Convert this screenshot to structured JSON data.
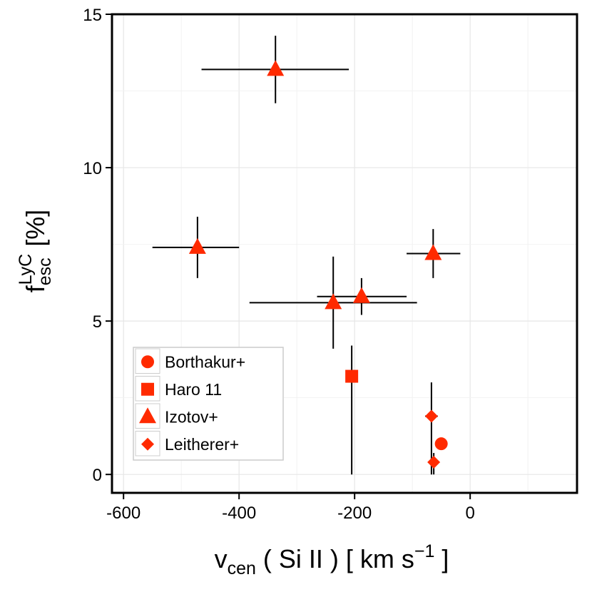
{
  "chart_data": {
    "type": "scatter",
    "title": "",
    "xlabel": {
      "main": "v",
      "sub": "cen",
      "rest_a": " ( Si II ) [ km s",
      "sup": "−1",
      "rest_b": " ]"
    },
    "ylabel": {
      "main": "f",
      "sub": "esc",
      "sup": "LyC",
      "rest": " [%]"
    },
    "xlim": [
      -620,
      185
    ],
    "ylim": [
      -0.6,
      15
    ],
    "xticks": [
      -600,
      -400,
      -200,
      0
    ],
    "xtick_labels": [
      "-600",
      "-400",
      "-200",
      "0"
    ],
    "yticks": [
      0,
      5,
      10,
      15
    ],
    "ytick_labels": [
      "0",
      "5",
      "10",
      "15"
    ],
    "grid": true,
    "marker_color": "#ff2a00",
    "legend_position": "bottom-left",
    "series": [
      {
        "name": "Borthakur+",
        "marker": "circle",
        "points": [
          {
            "x": -50,
            "y": 1.0
          }
        ]
      },
      {
        "name": "Haro 11",
        "marker": "square",
        "points": [
          {
            "x": -205,
            "y": 3.2,
            "yerr_low": 0,
            "yerr_high": 4.2
          }
        ]
      },
      {
        "name": "Izotov+",
        "marker": "triangle",
        "points": [
          {
            "x": -337,
            "y": 13.2,
            "xerr_low": -465,
            "xerr_high": -210,
            "yerr_low": 12.1,
            "yerr_high": 14.3
          },
          {
            "x": -472,
            "y": 7.4,
            "xerr_low": -550,
            "xerr_high": -400,
            "yerr_low": 6.4,
            "yerr_high": 8.4
          },
          {
            "x": -237,
            "y": 5.6,
            "xerr_low": -382,
            "xerr_high": -92,
            "yerr_low": 4.1,
            "yerr_high": 7.1
          },
          {
            "x": -188,
            "y": 5.8,
            "xerr_low": -265,
            "xerr_high": -110,
            "yerr_low": 5.2,
            "yerr_high": 6.4
          },
          {
            "x": -64,
            "y": 7.2,
            "xerr_low": -110,
            "xerr_high": -17,
            "yerr_low": 6.4,
            "yerr_high": 8.0
          }
        ]
      },
      {
        "name": "Leitherer+",
        "marker": "diamond",
        "points": [
          {
            "x": -67,
            "y": 1.9,
            "xerr_low": -78,
            "xerr_high": -56,
            "yerr_low": 0,
            "yerr_high": 3.0
          },
          {
            "x": -63,
            "y": 0.4,
            "xerr_low": -68,
            "xerr_high": -58,
            "yerr_low": 0,
            "yerr_high": 0.7
          }
        ]
      }
    ]
  }
}
